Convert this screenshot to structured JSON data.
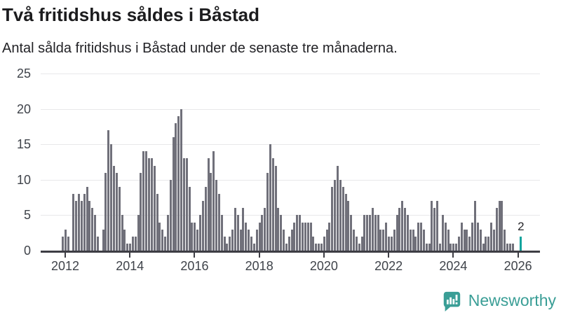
{
  "header": {
    "title": "Två fritidshus såldes i Båstad",
    "subtitle": "Antal sålda fritidshus i Båstad under de senaste tre månaderna."
  },
  "chart_data": {
    "type": "bar",
    "title": "Två fritidshus såldes i Båstad",
    "subtitle": "Antal sålda fritidshus i Båstad under de senaste tre månaderna.",
    "ylabel": "",
    "xlabel": "",
    "ylim": [
      0,
      25
    ],
    "y_ticks": [
      0,
      5,
      10,
      15,
      20,
      25
    ],
    "x_tick_labels": [
      "2012",
      "2014",
      "2016",
      "2018",
      "2020",
      "2022",
      "2024",
      "2026"
    ],
    "x_tick_month_indices": [
      1,
      25,
      49,
      73,
      97,
      121,
      145,
      169
    ],
    "grid": true,
    "legend": "none",
    "bar_color": "#70707a",
    "highlight_color": "#12a49d",
    "annotation": {
      "text": "2",
      "target": "last-bar"
    },
    "values": [
      2,
      3,
      2,
      0,
      8,
      7,
      8,
      7,
      8,
      9,
      7,
      6,
      5,
      2,
      0,
      3,
      11,
      17,
      15,
      12,
      11,
      9,
      5,
      3,
      1,
      1,
      2,
      2,
      5,
      11,
      14,
      14,
      13,
      13,
      12,
      8,
      4,
      3,
      2,
      5,
      10,
      16,
      18,
      19,
      20,
      13,
      13,
      9,
      4,
      4,
      3,
      5,
      7,
      9,
      13,
      11,
      14,
      10,
      8,
      5,
      2,
      1,
      2,
      3,
      6,
      5,
      3,
      6,
      4,
      3,
      2,
      1,
      3,
      4,
      5,
      6,
      11,
      15,
      13,
      12,
      6,
      5,
      3,
      1,
      2,
      3,
      4,
      5,
      5,
      4,
      4,
      4,
      4,
      2,
      1,
      1,
      1,
      2,
      3,
      4,
      9,
      10,
      12,
      10,
      9,
      8,
      7,
      5,
      3,
      2,
      1,
      2,
      5,
      5,
      5,
      6,
      5,
      5,
      3,
      3,
      4,
      2,
      2,
      3,
      5,
      6,
      7,
      6,
      5,
      3,
      3,
      2,
      4,
      4,
      3,
      1,
      1,
      7,
      6,
      7,
      1,
      5,
      4,
      3,
      1,
      1,
      1,
      2,
      4,
      3,
      3,
      2,
      4,
      7,
      4,
      3,
      1,
      2,
      2,
      4,
      3,
      6,
      7,
      7,
      3,
      1,
      1,
      1,
      0,
      0,
      2
    ]
  },
  "footer": {
    "brand": "Newsworthy",
    "brand_color": "#3a9e96",
    "logo_icon": "newsworthy-speech-bubble-chart-icon"
  }
}
